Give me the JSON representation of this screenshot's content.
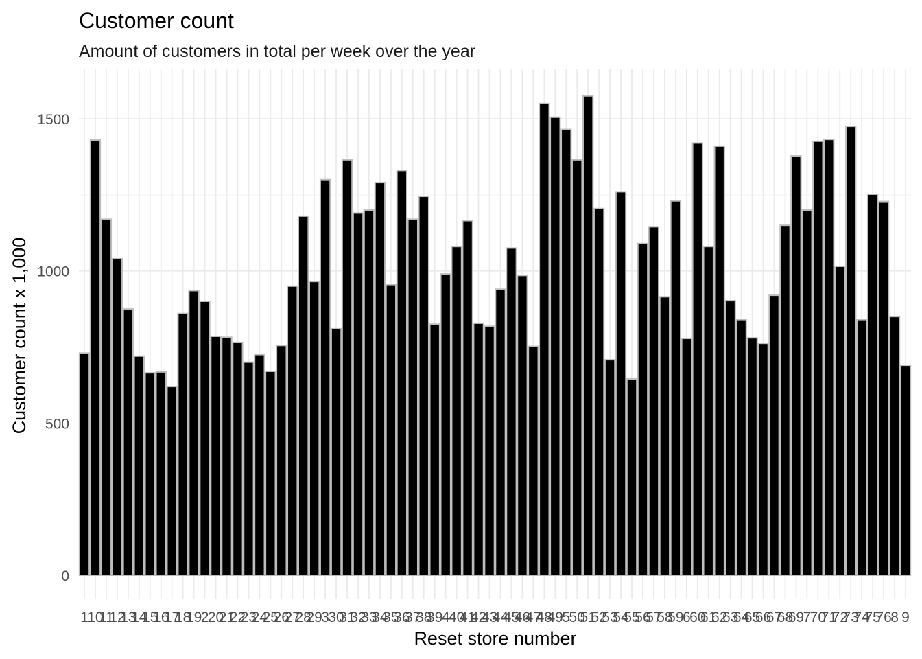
{
  "chart_data": {
    "type": "bar",
    "title": "Customer count",
    "subtitle": "Amount of customers in total per week over the year",
    "xlabel": "Reset store number",
    "ylabel": "Customer count x 1,000",
    "ylim": [
      0,
      1620
    ],
    "yticks": [
      0,
      500,
      1000,
      1500
    ],
    "grid": true,
    "legend": "none",
    "colors": {
      "bar_fill": "#000000",
      "bar_outline": "#bdbdbd",
      "grid": "#ebebeb"
    },
    "categories": [
      "1",
      "10",
      "11",
      "12",
      "13",
      "14",
      "15",
      "16",
      "17",
      "18",
      "19",
      "2",
      "20",
      "21",
      "22",
      "23",
      "24",
      "25",
      "26",
      "27",
      "28",
      "29",
      "3",
      "30",
      "31",
      "32",
      "33",
      "34",
      "35",
      "36",
      "37",
      "38",
      "39",
      "4",
      "40",
      "41",
      "42",
      "43",
      "44",
      "45",
      "46",
      "47",
      "48",
      "49",
      "5",
      "50",
      "51",
      "52",
      "53",
      "54",
      "55",
      "56",
      "57",
      "58",
      "59",
      "6",
      "60",
      "61",
      "62",
      "63",
      "64",
      "65",
      "66",
      "67",
      "68",
      "69",
      "7",
      "70",
      "71",
      "72",
      "73",
      "74",
      "75",
      "76",
      "8",
      "9"
    ],
    "tick_labels": [
      "1",
      "10",
      "11",
      "12",
      "13",
      "14",
      "15",
      "16",
      "17",
      "18",
      "19",
      "2",
      "20",
      "21",
      "22",
      "23",
      "24",
      "25",
      "26",
      "27",
      "28",
      "29",
      "3",
      "30",
      "31",
      "32",
      "33",
      "34",
      "35",
      "36",
      "37",
      "38",
      "39",
      "4",
      "40",
      "41",
      "42",
      "43",
      "44",
      "45",
      "46",
      "47",
      "48",
      "49",
      "5",
      "50",
      "51",
      "52",
      "53",
      "54",
      "55",
      "56",
      "57",
      "58",
      "59",
      "6",
      "60",
      "61",
      "62",
      "63",
      "64",
      "65",
      "66",
      "67",
      "68",
      "69",
      "7",
      "70",
      "71",
      "72",
      "73",
      "74",
      "75",
      "76",
      "8",
      "9"
    ],
    "values": [
      730,
      1430,
      1170,
      1040,
      875,
      720,
      665,
      668,
      620,
      860,
      935,
      900,
      785,
      782,
      765,
      700,
      725,
      670,
      755,
      950,
      1180,
      965,
      1300,
      810,
      1365,
      1190,
      1200,
      1290,
      955,
      1330,
      1170,
      1245,
      825,
      990,
      1080,
      1165,
      828,
      818,
      940,
      1075,
      985,
      752,
      1550,
      1505,
      1465,
      1365,
      1575,
      1205,
      708,
      1260,
      645,
      1090,
      1145,
      915,
      1230,
      778,
      1420,
      1080,
      1410,
      902,
      840,
      780,
      762,
      920,
      1150,
      1378,
      1200,
      1426,
      1432,
      1015,
      1475,
      840,
      1252,
      1228,
      850,
      690
    ]
  }
}
